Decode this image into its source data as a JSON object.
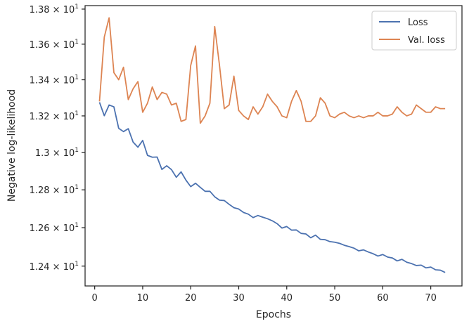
{
  "chart_data": {
    "type": "line",
    "xlabel": "Epochs",
    "ylabel": "Negative log-likelihood",
    "x_range": [
      -2,
      76.5
    ],
    "y_range": [
      12.298,
      13.82
    ],
    "y_scale": "log",
    "grid": false,
    "legend_position": "top-right",
    "x_ticks": [
      0,
      10,
      20,
      30,
      40,
      50,
      60,
      70
    ],
    "x_tick_labels": [
      "0",
      "10",
      "20",
      "30",
      "40",
      "50",
      "60",
      "70"
    ],
    "y_ticks": [
      12.4,
      12.6,
      12.8,
      13.0,
      13.2,
      13.4,
      13.6,
      13.8
    ],
    "y_tick_mantissas": [
      "1.24",
      "1.26",
      "1.28",
      "1.3",
      "1.32",
      "1.34",
      "1.36",
      "1.38"
    ],
    "y_tick_base": "10",
    "y_tick_exponent": "1",
    "y_tick_times": "×",
    "x": [
      1,
      2,
      3,
      4,
      5,
      6,
      7,
      8,
      9,
      10,
      11,
      12,
      13,
      14,
      15,
      16,
      17,
      18,
      19,
      20,
      21,
      22,
      23,
      24,
      25,
      26,
      27,
      28,
      29,
      30,
      31,
      32,
      33,
      34,
      35,
      36,
      37,
      38,
      39,
      40,
      41,
      42,
      43,
      44,
      45,
      46,
      47,
      48,
      49,
      50,
      51,
      52,
      53,
      54,
      55,
      56,
      57,
      58,
      59,
      60,
      61,
      62,
      63,
      64,
      65,
      66,
      67,
      68,
      69,
      70,
      71,
      72,
      73
    ],
    "series": [
      {
        "name": "Loss",
        "color": "#4c72b0",
        "values": [
          13.275,
          13.201,
          13.26,
          13.25,
          13.132,
          13.114,
          13.13,
          13.057,
          13.029,
          13.066,
          12.985,
          12.975,
          12.976,
          12.909,
          12.929,
          12.908,
          12.867,
          12.896,
          12.852,
          12.817,
          12.835,
          12.813,
          12.792,
          12.792,
          12.763,
          12.745,
          12.743,
          12.723,
          12.705,
          12.698,
          12.68,
          12.671,
          12.653,
          12.664,
          12.655,
          12.647,
          12.636,
          12.621,
          12.598,
          12.606,
          12.587,
          12.588,
          12.57,
          12.567,
          12.547,
          12.561,
          12.539,
          12.537,
          12.527,
          12.524,
          12.518,
          12.508,
          12.501,
          12.493,
          12.479,
          12.484,
          12.473,
          12.464,
          12.452,
          12.46,
          12.447,
          12.442,
          12.427,
          12.435,
          12.42,
          12.413,
          12.403,
          12.405,
          12.391,
          12.395,
          12.381,
          12.379,
          12.367
        ]
      },
      {
        "name": "Val. loss",
        "color": "#dd8452",
        "values": [
          13.28,
          13.64,
          13.75,
          13.44,
          13.4,
          13.47,
          13.29,
          13.35,
          13.39,
          13.22,
          13.27,
          13.36,
          13.29,
          13.33,
          13.32,
          13.26,
          13.27,
          13.17,
          13.18,
          13.48,
          13.59,
          13.16,
          13.2,
          13.27,
          13.7,
          13.48,
          13.24,
          13.26,
          13.42,
          13.23,
          13.2,
          13.18,
          13.25,
          13.21,
          13.25,
          13.32,
          13.28,
          13.25,
          13.2,
          13.19,
          13.28,
          13.34,
          13.28,
          13.17,
          13.17,
          13.2,
          13.3,
          13.27,
          13.2,
          13.19,
          13.21,
          13.22,
          13.2,
          13.19,
          13.2,
          13.19,
          13.2,
          13.2,
          13.22,
          13.2,
          13.2,
          13.21,
          13.25,
          13.22,
          13.2,
          13.21,
          13.26,
          13.24,
          13.22,
          13.22,
          13.25,
          13.24,
          13.24
        ]
      }
    ]
  }
}
